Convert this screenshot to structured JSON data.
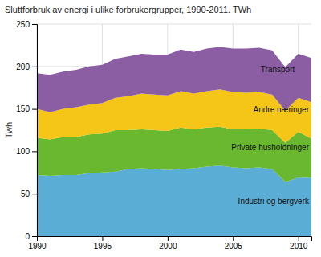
{
  "chart_data": {
    "type": "area",
    "stacked": true,
    "title": "Sluttforbruk av energi i ulike forbrukergrupper, 1990-2011. TWh",
    "ylabel": "Twh",
    "x": [
      1990,
      1991,
      1992,
      1993,
      1994,
      1995,
      1996,
      1997,
      1998,
      1999,
      2000,
      2001,
      2002,
      2003,
      2004,
      2005,
      2006,
      2007,
      2008,
      2009,
      2010,
      2011
    ],
    "series": [
      {
        "name": "Industri og bergverk",
        "color": "#5aadd4",
        "values": [
          72,
          71,
          72,
          72,
          74,
          75,
          76,
          79,
          80,
          79,
          78,
          79,
          80,
          82,
          83,
          81,
          80,
          81,
          79,
          64,
          69,
          69
        ]
      },
      {
        "name": "Private husholdninger",
        "color": "#6ab830",
        "values": [
          44,
          43,
          45,
          45,
          46,
          46,
          49,
          46,
          46,
          46,
          46,
          49,
          46,
          46,
          46,
          45,
          46,
          46,
          46,
          46,
          54,
          46
        ]
      },
      {
        "name": "Andre næringer",
        "color": "#f5c518",
        "values": [
          34,
          32,
          33,
          35,
          35,
          36,
          38,
          40,
          42,
          42,
          42,
          43,
          42,
          43,
          44,
          44,
          43,
          43,
          42,
          38,
          40,
          43
        ]
      },
      {
        "name": "Transport",
        "color": "#8b5ea4",
        "values": [
          42,
          44,
          44,
          44,
          45,
          45,
          46,
          47,
          47,
          47,
          48,
          49,
          49,
          50,
          50,
          51,
          52,
          52,
          52,
          51,
          52,
          52
        ]
      }
    ],
    "xlim": [
      1990,
      2011
    ],
    "xticks": [
      1990,
      1995,
      2000,
      2005,
      2010
    ],
    "ylim": [
      0,
      250
    ],
    "yticks": [
      0,
      50,
      100,
      150,
      200,
      250
    ],
    "grid": true
  }
}
